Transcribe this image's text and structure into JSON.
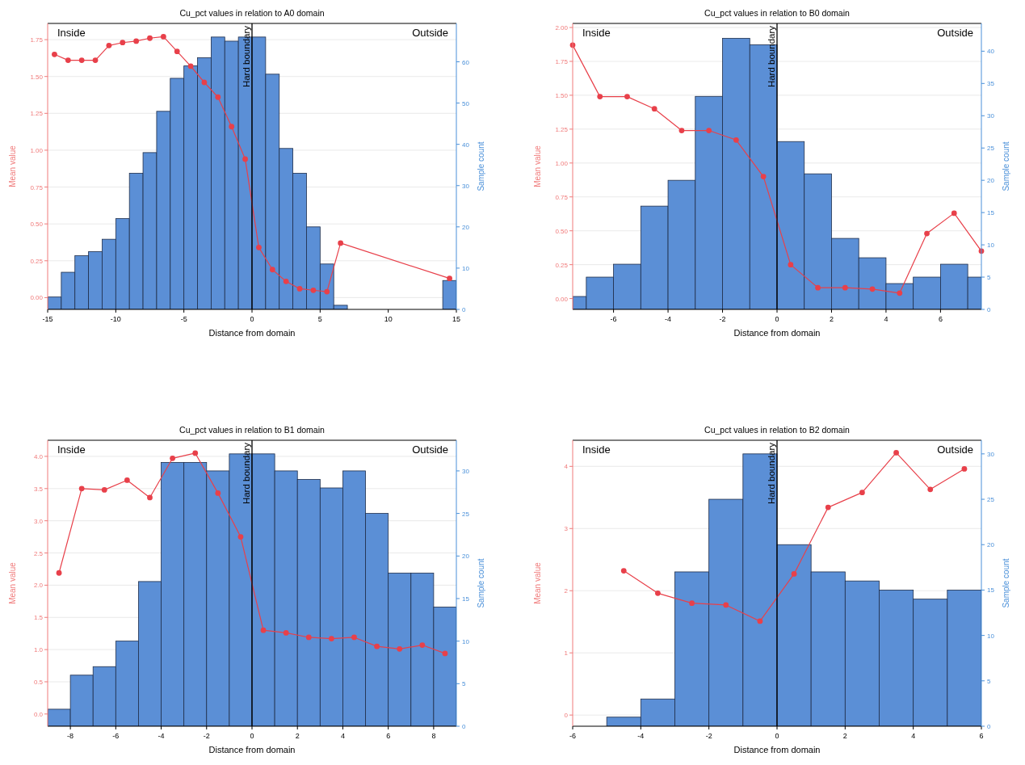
{
  "chart_data": [
    {
      "type": "histogram",
      "title": "Cu_pct values in relation to A0 domain",
      "xlabel": "Distance from domain",
      "ylabel": "Mean value",
      "y2label": "Sample count",
      "annotations": [
        "Inside",
        "Outside"
      ],
      "grid": "y",
      "xlim": [
        -15,
        15
      ],
      "xticks": [
        -15,
        -10,
        -5,
        0,
        5,
        10,
        15
      ],
      "ylim": [
        -0.08,
        1.86
      ],
      "yticks": [
        {
          "value": 0,
          "label": "0.00"
        },
        {
          "value": 0.25,
          "label": "0.25"
        },
        {
          "value": 0.5,
          "label": "0.50"
        },
        {
          "value": 0.75,
          "label": "0.75"
        },
        {
          "value": 1,
          "label": "1.00"
        },
        {
          "value": 1.25,
          "label": "1.25"
        },
        {
          "value": 1.5,
          "label": "1.50"
        },
        {
          "value": 1.75,
          "label": "1.75"
        }
      ],
      "y2lim": [
        0,
        69.3
      ],
      "y2ticks": [
        0,
        10,
        20,
        30,
        40,
        50,
        60
      ],
      "ref_lines": [
        {
          "axis": "x",
          "value": 0,
          "label": "Hard boundary",
          "color": "#000000"
        }
      ],
      "series": [
        {
          "axis": "y2",
          "color": "#5b8fd6",
          "bins": [
            -15,
            -14,
            -13,
            -12,
            -11,
            -10,
            -9,
            -8,
            -7,
            -6,
            -5,
            -4,
            -3,
            -2,
            -1,
            0,
            1,
            2,
            3,
            4,
            5,
            6,
            7,
            8,
            9,
            10,
            11,
            12,
            13,
            14,
            15
          ],
          "values": [
            3,
            9,
            13,
            14,
            17,
            22,
            33,
            38,
            48,
            56,
            59,
            61,
            66,
            65,
            66,
            66,
            57,
            39,
            33,
            20,
            11,
            1,
            0,
            0,
            0,
            0,
            0,
            0,
            0,
            7
          ]
        },
        {
          "type": "line",
          "color": "#e8404a",
          "marker": "circle",
          "x": [
            -14.5,
            -13.5,
            -12.5,
            -11.5,
            -10.5,
            -9.5,
            -8.5,
            -7.5,
            -6.5,
            -5.5,
            -4.5,
            -3.5,
            -2.5,
            -1.5,
            -0.5,
            0.5,
            1.5,
            2.5,
            3.5,
            4.5,
            5.5,
            6.5,
            14.5
          ],
          "values": [
            1.65,
            1.61,
            1.61,
            1.61,
            1.71,
            1.73,
            1.74,
            1.76,
            1.77,
            1.67,
            1.57,
            1.46,
            1.36,
            1.16,
            0.94,
            0.34,
            0.19,
            0.11,
            0.06,
            0.05,
            0.04,
            0.37,
            0.13
          ]
        }
      ]
    },
    {
      "type": "histogram",
      "title": "Cu_pct values in relation to B0 domain",
      "xlabel": "Distance from domain",
      "ylabel": "Mean value",
      "y2label": "Sample count",
      "annotations": [
        "Inside",
        "Outside"
      ],
      "grid": "y",
      "xlim": [
        -7.5,
        7.5
      ],
      "xticks": [
        -6,
        -4,
        -2,
        0,
        2,
        4,
        6
      ],
      "ylim": [
        -0.08,
        2.03
      ],
      "yticks": [
        {
          "value": 0,
          "label": "0.00"
        },
        {
          "value": 0.25,
          "label": "0.25"
        },
        {
          "value": 0.5,
          "label": "0.50"
        },
        {
          "value": 0.75,
          "label": "0.75"
        },
        {
          "value": 1,
          "label": "1.00"
        },
        {
          "value": 1.25,
          "label": "1.25"
        },
        {
          "value": 1.5,
          "label": "1.50"
        },
        {
          "value": 1.75,
          "label": "1.75"
        },
        {
          "value": 2,
          "label": "2.00"
        }
      ],
      "y2lim": [
        0,
        44.3
      ],
      "y2ticks": [
        0,
        5,
        10,
        15,
        20,
        25,
        30,
        35,
        40
      ],
      "ref_lines": [
        {
          "axis": "x",
          "value": 0,
          "label": "Hard boundary",
          "color": "#000000"
        }
      ],
      "series": [
        {
          "axis": "y2",
          "color": "#5b8fd6",
          "bins": [
            -7.5,
            -7,
            -6,
            -5,
            -4,
            -3,
            -2,
            -1,
            0,
            1,
            2,
            3,
            4,
            5,
            6,
            7,
            7.5
          ],
          "values": [
            2,
            5,
            7,
            16,
            20,
            33,
            42,
            41,
            26,
            21,
            11,
            8,
            4,
            5,
            7,
            5
          ]
        },
        {
          "type": "line",
          "color": "#e8404a",
          "marker": "circle",
          "x": [
            -7.5,
            -6.5,
            -5.5,
            -4.5,
            -3.5,
            -2.5,
            -1.5,
            -0.5,
            0.5,
            1.5,
            2.5,
            3.5,
            4.5,
            5.5,
            6.5,
            7.5
          ],
          "values": [
            1.87,
            1.49,
            1.49,
            1.4,
            1.24,
            1.24,
            1.17,
            0.9,
            0.25,
            0.08,
            0.08,
            0.07,
            0.04,
            0.48,
            0.63,
            0.35
          ]
        }
      ]
    },
    {
      "type": "histogram",
      "title": "Cu_pct values in relation to B1 domain",
      "xlabel": "Distance from domain",
      "ylabel": "Mean value",
      "y2label": "Sample count",
      "annotations": [
        "Inside",
        "Outside"
      ],
      "grid": "y",
      "xlim": [
        -9,
        9
      ],
      "xticks": [
        -8,
        -6,
        -4,
        -2,
        0,
        2,
        4,
        6,
        8
      ],
      "ylim": [
        -0.19,
        4.25
      ],
      "yticks": [
        {
          "value": 0,
          "label": "0.0"
        },
        {
          "value": 0.5,
          "label": "0.5"
        },
        {
          "value": 1,
          "label": "1.0"
        },
        {
          "value": 1.5,
          "label": "1.5"
        },
        {
          "value": 2,
          "label": "2.0"
        },
        {
          "value": 2.5,
          "label": "2.5"
        },
        {
          "value": 3,
          "label": "3.0"
        },
        {
          "value": 3.5,
          "label": "3.5"
        },
        {
          "value": 4,
          "label": "4.0"
        }
      ],
      "y2lim": [
        0,
        33.6
      ],
      "y2ticks": [
        0,
        5,
        10,
        15,
        20,
        25,
        30
      ],
      "ref_lines": [
        {
          "axis": "x",
          "value": 0,
          "label": "Hard boundary",
          "color": "#000000"
        }
      ],
      "series": [
        {
          "axis": "y2",
          "color": "#5b8fd6",
          "bins": [
            -9,
            -8,
            -7,
            -6,
            -5,
            -4,
            -3,
            -2,
            -1,
            0,
            1,
            2,
            3,
            4,
            5,
            6,
            7,
            8,
            9
          ],
          "values": [
            2,
            6,
            7,
            10,
            17,
            31,
            31,
            30,
            32,
            32,
            30,
            29,
            28,
            30,
            25,
            18,
            18,
            14
          ]
        },
        {
          "type": "line",
          "color": "#e8404a",
          "marker": "circle",
          "x": [
            -8.5,
            -7.5,
            -6.5,
            -5.5,
            -4.5,
            -3.5,
            -2.5,
            -1.5,
            -0.5,
            0.5,
            1.5,
            2.5,
            3.5,
            4.5,
            5.5,
            6.5,
            7.5,
            8.5
          ],
          "values": [
            2.19,
            3.5,
            3.48,
            3.63,
            3.36,
            3.97,
            4.05,
            3.43,
            2.75,
            1.3,
            1.26,
            1.19,
            1.17,
            1.19,
            1.05,
            1.01,
            1.07,
            0.94
          ]
        }
      ]
    },
    {
      "type": "histogram",
      "title": "Cu_pct values in relation to B2 domain",
      "xlabel": "Distance from domain",
      "ylabel": "Mean value",
      "y2label": "Sample count",
      "annotations": [
        "Inside",
        "Outside"
      ],
      "grid": "y",
      "xlim": [
        -6,
        6
      ],
      "xticks": [
        -6,
        -4,
        -2,
        0,
        2,
        4,
        6
      ],
      "ylim": [
        -0.18,
        4.42
      ],
      "yticks": [
        0,
        1,
        2,
        3,
        4
      ],
      "y2lim": [
        0,
        31.5
      ],
      "y2ticks": [
        0,
        5,
        10,
        15,
        20,
        25,
        30
      ],
      "ref_lines": [
        {
          "axis": "x",
          "value": 0,
          "label": "Hard boundary",
          "color": "#000000"
        }
      ],
      "series": [
        {
          "axis": "y2",
          "color": "#5b8fd6",
          "bins": [
            -6,
            -5,
            -4,
            -3,
            -2,
            -1,
            0,
            1,
            2,
            3,
            4,
            5,
            6
          ],
          "values": [
            0,
            1,
            3,
            17,
            25,
            30,
            20,
            17,
            16,
            15,
            14,
            15
          ]
        },
        {
          "type": "line",
          "color": "#e8404a",
          "marker": "circle",
          "x": [
            -4.5,
            -3.5,
            -2.5,
            -1.5,
            -0.5,
            0.5,
            1.5,
            2.5,
            3.5,
            4.5,
            5.5
          ],
          "values": [
            2.32,
            1.96,
            1.8,
            1.77,
            1.51,
            2.27,
            3.34,
            3.58,
            4.22,
            3.63,
            3.96
          ]
        }
      ]
    }
  ]
}
